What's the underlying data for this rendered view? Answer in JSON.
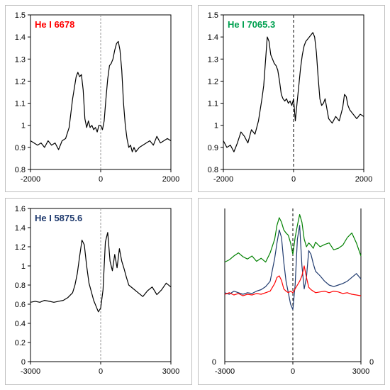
{
  "chart_data": [
    {
      "type": "line",
      "title": "He I 6678",
      "title_color": "#ff0000",
      "xlim": [
        -2000,
        2000
      ],
      "ylim": [
        0.8,
        1.5
      ],
      "xticks": [
        "-2000",
        "0",
        "2000"
      ],
      "yticks": [
        "0.8",
        "0.9",
        "1",
        "1.1",
        "1.2",
        "1.3",
        "1.4",
        "1.5"
      ],
      "zero_line": "dashed-gray",
      "series": [
        {
          "color": "#000000",
          "x": [
            -2000,
            -1900,
            -1800,
            -1700,
            -1600,
            -1500,
            -1400,
            -1300,
            -1200,
            -1100,
            -1000,
            -900,
            -800,
            -700,
            -650,
            -600,
            -550,
            -500,
            -450,
            -400,
            -350,
            -300,
            -250,
            -200,
            -150,
            -100,
            -50,
            0,
            50,
            100,
            150,
            200,
            250,
            300,
            350,
            400,
            450,
            500,
            550,
            600,
            650,
            700,
            750,
            800,
            850,
            900,
            950,
            1000,
            1100,
            1200,
            1300,
            1400,
            1500,
            1600,
            1700,
            1800,
            1900,
            2000
          ],
          "y": [
            0.93,
            0.92,
            0.91,
            0.92,
            0.9,
            0.93,
            0.91,
            0.92,
            0.89,
            0.93,
            0.94,
            0.99,
            1.12,
            1.22,
            1.24,
            1.22,
            1.23,
            1.16,
            1.03,
            0.99,
            1.02,
            0.99,
            1.0,
            0.98,
            0.99,
            0.97,
            1.0,
            1.0,
            0.98,
            1.02,
            1.12,
            1.21,
            1.27,
            1.28,
            1.3,
            1.34,
            1.37,
            1.38,
            1.34,
            1.25,
            1.1,
            1.0,
            0.94,
            0.9,
            0.91,
            0.88,
            0.9,
            0.88,
            0.9,
            0.91,
            0.92,
            0.93,
            0.91,
            0.95,
            0.92,
            0.93,
            0.94,
            0.93
          ]
        }
      ]
    },
    {
      "type": "line",
      "title": "He I 7065.3",
      "title_color": "#00a050",
      "xlim": [
        -2000,
        2000
      ],
      "ylim": [
        0.8,
        1.5
      ],
      "xticks": [
        "-2000",
        "0",
        "2000"
      ],
      "yticks": [
        "0.8",
        "0.9",
        "1",
        "1.1",
        "1.2",
        "1.3",
        "1.4",
        "1.5"
      ],
      "zero_line": "dashed-black",
      "series": [
        {
          "color": "#000000",
          "x": [
            -2000,
            -1900,
            -1800,
            -1700,
            -1600,
            -1500,
            -1400,
            -1300,
            -1200,
            -1100,
            -1000,
            -900,
            -850,
            -800,
            -750,
            -700,
            -650,
            -600,
            -550,
            -500,
            -450,
            -400,
            -350,
            -300,
            -250,
            -200,
            -150,
            -100,
            -50,
            0,
            50,
            100,
            150,
            200,
            250,
            300,
            350,
            400,
            450,
            500,
            550,
            600,
            650,
            700,
            750,
            800,
            850,
            900,
            1000,
            1100,
            1200,
            1300,
            1400,
            1450,
            1500,
            1550,
            1600,
            1700,
            1800,
            1900,
            2000
          ],
          "y": [
            0.93,
            0.9,
            0.91,
            0.88,
            0.92,
            0.97,
            0.95,
            0.92,
            0.98,
            0.96,
            1.02,
            1.12,
            1.18,
            1.29,
            1.4,
            1.38,
            1.32,
            1.3,
            1.28,
            1.27,
            1.25,
            1.2,
            1.14,
            1.12,
            1.11,
            1.12,
            1.1,
            1.11,
            1.09,
            1.12,
            1.02,
            1.1,
            1.18,
            1.26,
            1.32,
            1.36,
            1.38,
            1.39,
            1.4,
            1.41,
            1.42,
            1.4,
            1.33,
            1.22,
            1.12,
            1.09,
            1.1,
            1.12,
            1.03,
            1.01,
            1.04,
            1.02,
            1.08,
            1.14,
            1.13,
            1.09,
            1.07,
            1.05,
            1.03,
            1.05,
            1.04
          ]
        }
      ]
    },
    {
      "type": "line",
      "title": "He I 5875.6",
      "title_color": "#1f3a6e",
      "xlim": [
        -3000,
        3000
      ],
      "ylim": [
        0,
        1.6
      ],
      "xticks": [
        "-3000",
        "0",
        "3000"
      ],
      "yticks": [
        "0",
        "0.2",
        "0.4",
        "0.6",
        "0.8",
        "1",
        "1.2",
        "1.4",
        "1.6"
      ],
      "zero_line": "dashed-gray",
      "series": [
        {
          "color": "#000000",
          "x": [
            -3000,
            -2800,
            -2600,
            -2400,
            -2200,
            -2000,
            -1800,
            -1600,
            -1400,
            -1200,
            -1100,
            -1000,
            -900,
            -800,
            -700,
            -600,
            -500,
            -400,
            -300,
            -200,
            -100,
            0,
            100,
            200,
            300,
            400,
            500,
            600,
            700,
            800,
            900,
            1000,
            1100,
            1200,
            1400,
            1600,
            1800,
            2000,
            2200,
            2400,
            2600,
            2800,
            3000
          ],
          "y": [
            0.62,
            0.63,
            0.62,
            0.64,
            0.63,
            0.62,
            0.63,
            0.64,
            0.67,
            0.72,
            0.8,
            0.92,
            1.1,
            1.27,
            1.22,
            1.0,
            0.82,
            0.73,
            0.64,
            0.58,
            0.52,
            0.56,
            0.75,
            1.25,
            1.35,
            1.05,
            0.95,
            1.12,
            0.98,
            1.18,
            1.05,
            0.97,
            0.88,
            0.8,
            0.76,
            0.72,
            0.68,
            0.74,
            0.78,
            0.7,
            0.75,
            0.82,
            0.78
          ]
        }
      ]
    },
    {
      "type": "line",
      "xlim": [
        -3000,
        3000
      ],
      "ylim": [
        0,
        2
      ],
      "xticks": [
        "-3000",
        "0",
        "3000"
      ],
      "y_left_label": "0",
      "y_left_label_color": "#ff0000",
      "y_right_label": "0",
      "zero_line": "dashed-black",
      "series": [
        {
          "color": "#008000",
          "x": [
            -3000,
            -2800,
            -2600,
            -2400,
            -2200,
            -2000,
            -1800,
            -1600,
            -1400,
            -1200,
            -1000,
            -800,
            -700,
            -600,
            -500,
            -400,
            -300,
            -200,
            -100,
            0,
            100,
            200,
            300,
            400,
            500,
            600,
            700,
            800,
            900,
            1000,
            1200,
            1400,
            1600,
            1800,
            2000,
            2200,
            2400,
            2600,
            2800,
            3000
          ],
          "y": [
            1.3,
            1.33,
            1.38,
            1.42,
            1.37,
            1.34,
            1.38,
            1.31,
            1.35,
            1.3,
            1.42,
            1.6,
            1.78,
            1.88,
            1.82,
            1.72,
            1.68,
            1.65,
            1.55,
            1.4,
            1.62,
            1.78,
            1.92,
            1.82,
            1.6,
            1.5,
            1.55,
            1.52,
            1.48,
            1.56,
            1.5,
            1.53,
            1.55,
            1.46,
            1.48,
            1.52,
            1.62,
            1.68,
            1.55,
            1.38
          ]
        },
        {
          "color": "#1f3a6e",
          "x": [
            -3000,
            -2800,
            -2600,
            -2400,
            -2200,
            -2000,
            -1800,
            -1600,
            -1400,
            -1200,
            -1000,
            -800,
            -700,
            -600,
            -500,
            -400,
            -300,
            -200,
            -100,
            0,
            100,
            200,
            300,
            400,
            500,
            600,
            700,
            800,
            900,
            1000,
            1200,
            1400,
            1600,
            1800,
            2000,
            2200,
            2400,
            2600,
            2800,
            3000
          ],
          "y": [
            0.9,
            0.88,
            0.92,
            0.9,
            0.88,
            0.9,
            0.89,
            0.92,
            0.94,
            0.98,
            1.05,
            1.35,
            1.55,
            1.72,
            1.62,
            1.3,
            1.05,
            0.9,
            0.75,
            0.68,
            1.0,
            1.6,
            1.78,
            1.25,
            0.95,
            1.1,
            1.45,
            1.4,
            1.28,
            1.18,
            1.12,
            1.05,
            1.0,
            0.98,
            1.0,
            1.02,
            1.05,
            1.1,
            1.15,
            1.08
          ]
        },
        {
          "color": "#ff0000",
          "x": [
            -3000,
            -2800,
            -2600,
            -2400,
            -2200,
            -2000,
            -1800,
            -1600,
            -1400,
            -1200,
            -1000,
            -800,
            -700,
            -600,
            -500,
            -400,
            -300,
            -200,
            -100,
            0,
            100,
            200,
            300,
            400,
            500,
            600,
            700,
            800,
            900,
            1000,
            1200,
            1400,
            1600,
            1800,
            2000,
            2200,
            2400,
            2600,
            2800,
            3000
          ],
          "y": [
            0.88,
            0.9,
            0.87,
            0.89,
            0.86,
            0.88,
            0.87,
            0.89,
            0.88,
            0.9,
            0.92,
            1.02,
            1.1,
            1.12,
            1.06,
            0.95,
            0.92,
            0.9,
            0.92,
            0.9,
            0.95,
            1.0,
            1.05,
            1.12,
            1.25,
            1.1,
            0.97,
            0.94,
            0.92,
            0.9,
            0.91,
            0.92,
            0.9,
            0.92,
            0.91,
            0.89,
            0.9,
            0.88,
            0.87,
            0.86
          ]
        }
      ]
    }
  ]
}
